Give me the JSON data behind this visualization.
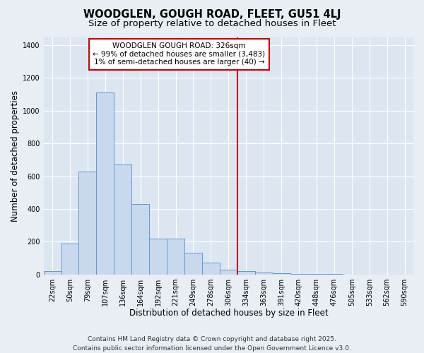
{
  "title": "WOODGLEN, GOUGH ROAD, FLEET, GU51 4LJ",
  "subtitle": "Size of property relative to detached houses in Fleet",
  "xlabel": "Distribution of detached houses by size in Fleet",
  "ylabel": "Number of detached properties",
  "footer_line1": "Contains HM Land Registry data © Crown copyright and database right 2025.",
  "footer_line2": "Contains public sector information licensed under the Open Government Licence v3.0.",
  "categories": [
    "22sqm",
    "50sqm",
    "79sqm",
    "107sqm",
    "136sqm",
    "164sqm",
    "192sqm",
    "221sqm",
    "249sqm",
    "278sqm",
    "306sqm",
    "334sqm",
    "363sqm",
    "391sqm",
    "420sqm",
    "448sqm",
    "476sqm",
    "505sqm",
    "533sqm",
    "562sqm",
    "590sqm"
  ],
  "bar_values": [
    20,
    190,
    630,
    1110,
    670,
    430,
    220,
    220,
    130,
    70,
    30,
    20,
    10,
    8,
    4,
    2,
    1,
    0,
    0,
    0,
    0
  ],
  "bar_color": "#c9d9ed",
  "bar_edge_color": "#5b9bd5",
  "vline_color": "#cc0000",
  "annotation_line1": "WOODGLEN GOUGH ROAD: 326sqm",
  "annotation_line2": "← 99% of detached houses are smaller (3,483)",
  "annotation_line3": "1% of semi-detached houses are larger (40) →",
  "annotation_box_color": "#ffffff",
  "annotation_box_edge": "#cc0000",
  "ylim": [
    0,
    1450
  ],
  "yticks": [
    0,
    200,
    400,
    600,
    800,
    1000,
    1200,
    1400
  ],
  "bg_color": "#e8eef4",
  "plot_bg_color": "#dce6f0",
  "grid_color": "#ffffff",
  "title_fontsize": 10.5,
  "subtitle_fontsize": 9.5,
  "axis_label_fontsize": 8.5,
  "tick_fontsize": 7,
  "annotation_fontsize": 7.5,
  "footer_fontsize": 6.5,
  "vline_pos": 10.5
}
